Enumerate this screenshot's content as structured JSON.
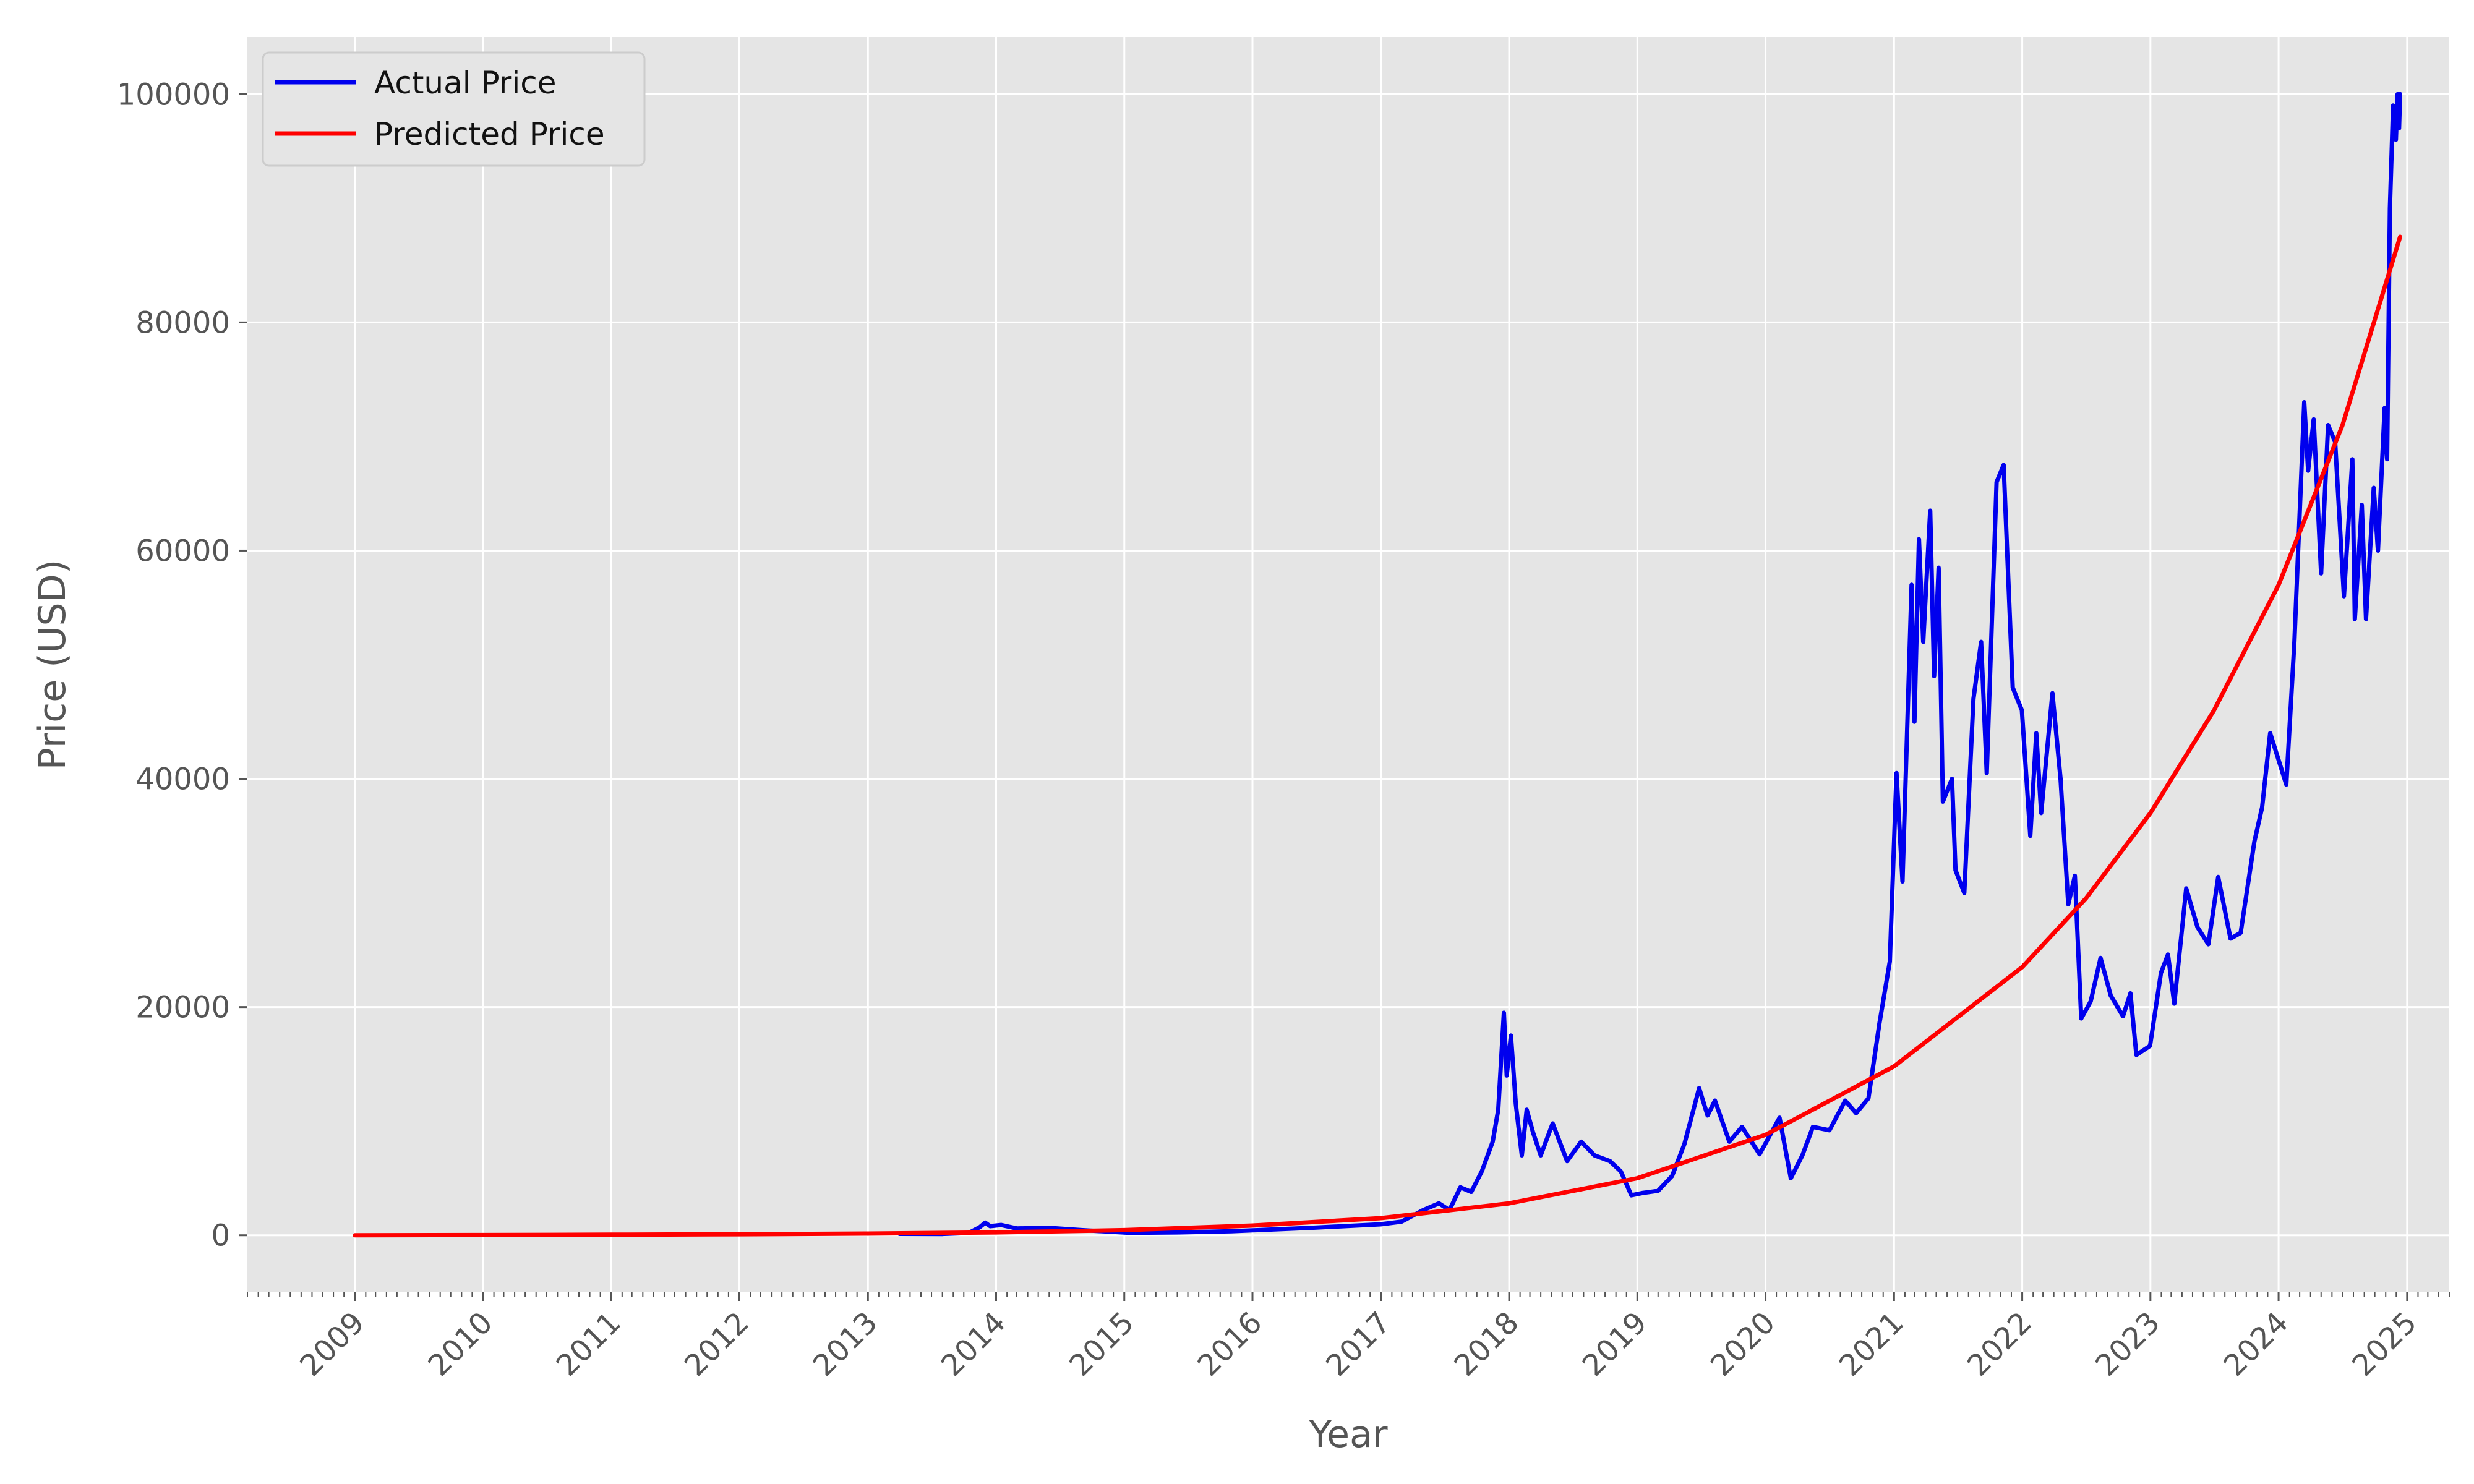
{
  "chart_data": {
    "type": "line",
    "xlabel": "Year",
    "ylabel": "Price (USD)",
    "x_ticks": [
      "2009",
      "2010",
      "2011",
      "2012",
      "2013",
      "2014",
      "2015",
      "2016",
      "2017",
      "2018",
      "2019",
      "2020",
      "2021",
      "2022",
      "2023",
      "2024",
      "2025"
    ],
    "y_ticks": [
      0,
      20000,
      40000,
      60000,
      80000,
      100000
    ],
    "xlim": [
      "2008-03-01",
      "2025-05-01"
    ],
    "ylim": [
      -5000,
      105000
    ],
    "grid": true,
    "legend_position": "top-left",
    "series": [
      {
        "name": "Actual Price",
        "color": "#0000ee",
        "points": [
          [
            "2013-04-01",
            120
          ],
          [
            "2013-08-01",
            110
          ],
          [
            "2013-10-15",
            200
          ],
          [
            "2013-11-15",
            700
          ],
          [
            "2013-12-01",
            1100
          ],
          [
            "2013-12-15",
            800
          ],
          [
            "2014-01-15",
            900
          ],
          [
            "2014-03-01",
            600
          ],
          [
            "2014-06-01",
            650
          ],
          [
            "2014-09-01",
            450
          ],
          [
            "2015-01-15",
            220
          ],
          [
            "2015-06-01",
            250
          ],
          [
            "2015-11-01",
            350
          ],
          [
            "2016-01-01",
            430
          ],
          [
            "2016-06-15",
            650
          ],
          [
            "2016-12-31",
            960
          ],
          [
            "2017-03-01",
            1200
          ],
          [
            "2017-05-01",
            2200
          ],
          [
            "2017-06-15",
            2800
          ],
          [
            "2017-07-15",
            2200
          ],
          [
            "2017-08-15",
            4200
          ],
          [
            "2017-09-15",
            3800
          ],
          [
            "2017-10-15",
            5600
          ],
          [
            "2017-11-15",
            8200
          ],
          [
            "2017-12-01",
            11000
          ],
          [
            "2017-12-17",
            19500
          ],
          [
            "2017-12-25",
            14000
          ],
          [
            "2018-01-06",
            17500
          ],
          [
            "2018-01-20",
            11500
          ],
          [
            "2018-02-06",
            7000
          ],
          [
            "2018-02-20",
            11000
          ],
          [
            "2018-03-10",
            9000
          ],
          [
            "2018-04-01",
            7000
          ],
          [
            "2018-05-05",
            9800
          ],
          [
            "2018-06-15",
            6500
          ],
          [
            "2018-07-25",
            8200
          ],
          [
            "2018-09-01",
            7000
          ],
          [
            "2018-10-15",
            6500
          ],
          [
            "2018-11-15",
            5600
          ],
          [
            "2018-12-15",
            3500
          ],
          [
            "2019-01-15",
            3700
          ],
          [
            "2019-03-01",
            3900
          ],
          [
            "2019-04-10",
            5200
          ],
          [
            "2019-05-15",
            8000
          ],
          [
            "2019-06-26",
            12900
          ],
          [
            "2019-07-20",
            10500
          ],
          [
            "2019-08-10",
            11800
          ],
          [
            "2019-09-20",
            8200
          ],
          [
            "2019-10-26",
            9500
          ],
          [
            "2019-12-15",
            7100
          ],
          [
            "2020-02-10",
            10300
          ],
          [
            "2020-03-13",
            5000
          ],
          [
            "2020-04-15",
            7000
          ],
          [
            "2020-05-15",
            9500
          ],
          [
            "2020-07-01",
            9200
          ],
          [
            "2020-08-15",
            11800
          ],
          [
            "2020-09-15",
            10700
          ],
          [
            "2020-10-20",
            12000
          ],
          [
            "2020-11-20",
            18500
          ],
          [
            "2020-12-20",
            24000
          ],
          [
            "2021-01-08",
            40500
          ],
          [
            "2021-01-25",
            31000
          ],
          [
            "2021-02-20",
            57000
          ],
          [
            "2021-02-28",
            45000
          ],
          [
            "2021-03-13",
            61000
          ],
          [
            "2021-03-25",
            52000
          ],
          [
            "2021-04-14",
            63500
          ],
          [
            "2021-04-25",
            49000
          ],
          [
            "2021-05-08",
            58500
          ],
          [
            "2021-05-20",
            38000
          ],
          [
            "2021-06-15",
            40000
          ],
          [
            "2021-06-25",
            32000
          ],
          [
            "2021-07-20",
            30000
          ],
          [
            "2021-08-15",
            47000
          ],
          [
            "2021-09-06",
            52000
          ],
          [
            "2021-09-22",
            40500
          ],
          [
            "2021-10-20",
            66000
          ],
          [
            "2021-11-09",
            67500
          ],
          [
            "2021-12-05",
            48000
          ],
          [
            "2021-12-31",
            46000
          ],
          [
            "2022-01-24",
            35000
          ],
          [
            "2022-02-10",
            44000
          ],
          [
            "2022-02-24",
            37000
          ],
          [
            "2022-03-28",
            47500
          ],
          [
            "2022-04-20",
            40000
          ],
          [
            "2022-05-12",
            29000
          ],
          [
            "2022-05-31",
            31500
          ],
          [
            "2022-06-18",
            19000
          ],
          [
            "2022-07-15",
            20500
          ],
          [
            "2022-08-12",
            24300
          ],
          [
            "2022-09-10",
            21000
          ],
          [
            "2022-10-15",
            19200
          ],
          [
            "2022-11-05",
            21200
          ],
          [
            "2022-11-22",
            15800
          ],
          [
            "2022-12-31",
            16600
          ],
          [
            "2023-01-31",
            23000
          ],
          [
            "2023-02-20",
            24600
          ],
          [
            "2023-03-10",
            20300
          ],
          [
            "2023-04-13",
            30400
          ],
          [
            "2023-05-15",
            27000
          ],
          [
            "2023-06-15",
            25500
          ],
          [
            "2023-07-13",
            31400
          ],
          [
            "2023-08-17",
            26000
          ],
          [
            "2023-09-15",
            26500
          ],
          [
            "2023-10-24",
            34500
          ],
          [
            "2023-11-15",
            37500
          ],
          [
            "2023-12-08",
            44000
          ],
          [
            "2024-01-23",
            39500
          ],
          [
            "2024-02-15",
            52000
          ],
          [
            "2024-03-14",
            73000
          ],
          [
            "2024-03-25",
            67000
          ],
          [
            "2024-04-10",
            71500
          ],
          [
            "2024-05-01",
            58000
          ],
          [
            "2024-05-21",
            71000
          ],
          [
            "2024-06-10",
            69500
          ],
          [
            "2024-07-05",
            56000
          ],
          [
            "2024-07-29",
            68000
          ],
          [
            "2024-08-05",
            54000
          ],
          [
            "2024-08-25",
            64000
          ],
          [
            "2024-09-06",
            54000
          ],
          [
            "2024-09-28",
            65500
          ],
          [
            "2024-10-10",
            60000
          ],
          [
            "2024-10-29",
            72500
          ],
          [
            "2024-11-05",
            68000
          ],
          [
            "2024-11-13",
            90000
          ],
          [
            "2024-11-22",
            99000
          ],
          [
            "2024-11-30",
            96000
          ],
          [
            "2024-12-05",
            100000
          ],
          [
            "2024-12-09",
            97000
          ],
          [
            "2024-12-12",
            100000
          ]
        ]
      },
      {
        "name": "Predicted Price",
        "color": "#ff0000",
        "points": [
          [
            "2009-01-01",
            0
          ],
          [
            "2010-01-01",
            20
          ],
          [
            "2011-01-01",
            50
          ],
          [
            "2012-01-01",
            90
          ],
          [
            "2013-01-01",
            150
          ],
          [
            "2014-01-01",
            250
          ],
          [
            "2015-01-01",
            450
          ],
          [
            "2016-01-01",
            850
          ],
          [
            "2017-01-01",
            1500
          ],
          [
            "2018-01-01",
            2800
          ],
          [
            "2019-01-01",
            5000
          ],
          [
            "2020-01-01",
            8800
          ],
          [
            "2021-01-01",
            14800
          ],
          [
            "2022-01-01",
            23500
          ],
          [
            "2022-07-01",
            29500
          ],
          [
            "2023-01-01",
            37000
          ],
          [
            "2023-07-01",
            46000
          ],
          [
            "2024-01-01",
            57000
          ],
          [
            "2024-07-01",
            71000
          ],
          [
            "2024-12-12",
            87500
          ]
        ]
      }
    ]
  }
}
